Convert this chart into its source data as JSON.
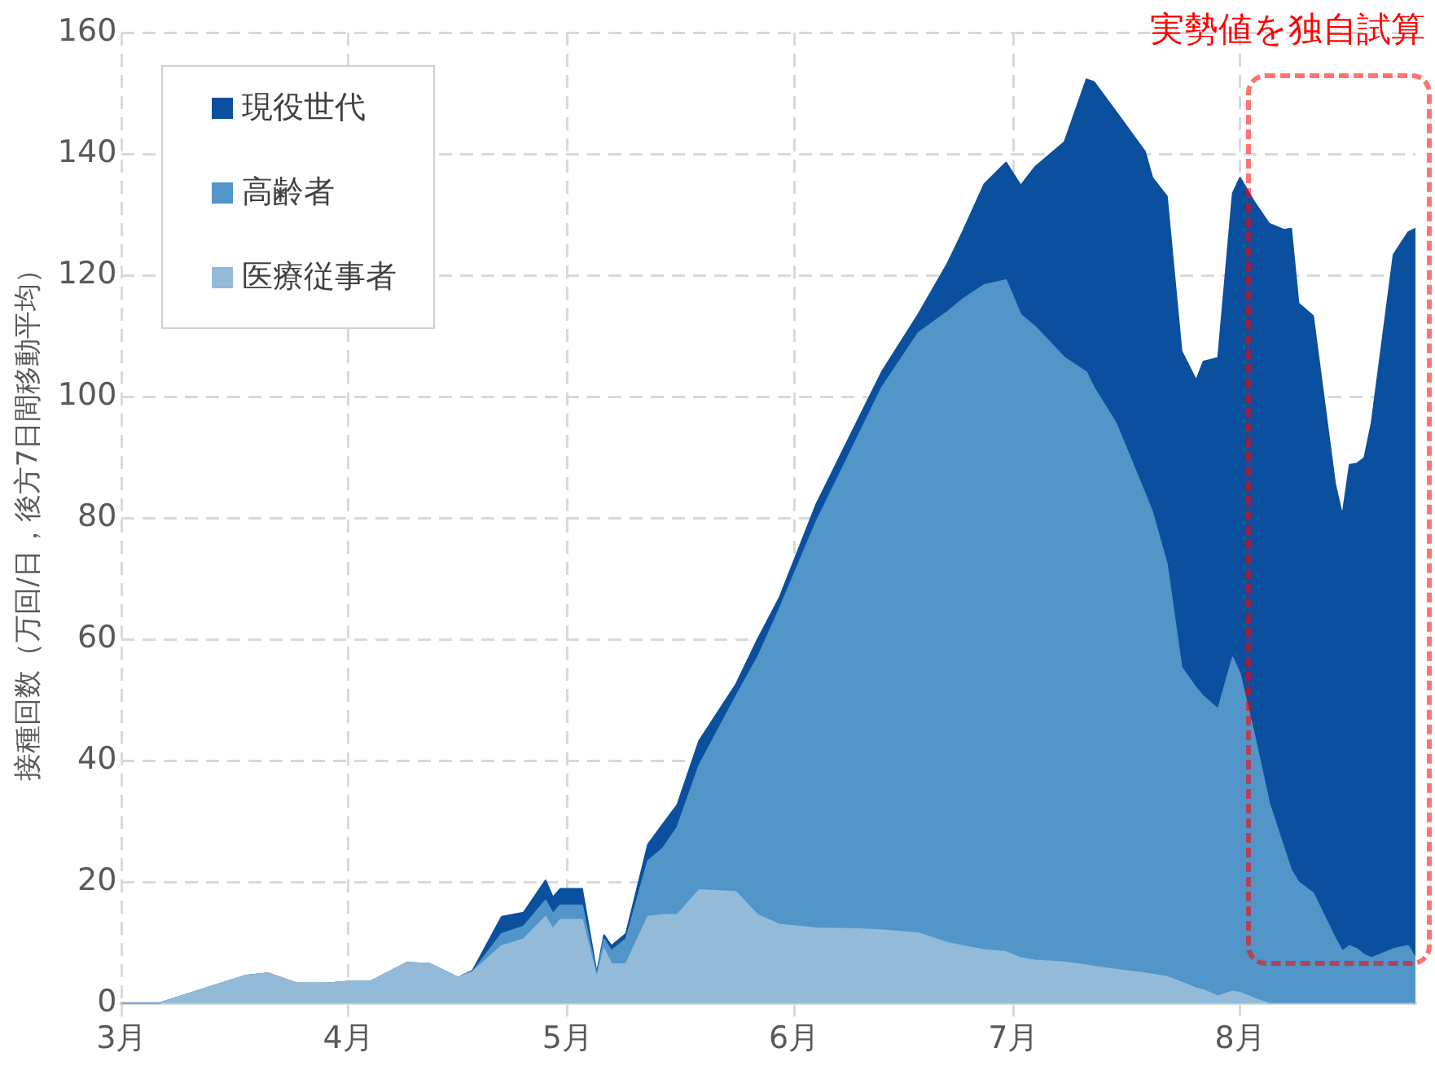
{
  "chart_data": {
    "type": "area",
    "stacked": true,
    "ylabel": "接種回数（万回/日，後方7日間移動平均）",
    "x": [
      "--03-01",
      "--03-06",
      "--03-12",
      "--03-18",
      "--03-21",
      "--03-25",
      "--03-29",
      "--04-01",
      "--04-04",
      "--04-09",
      "--04-12",
      "--04-16",
      "--04-18",
      "--04-22",
      "--04-25",
      "--04-28",
      "--04-29",
      "--04-30",
      "--05-03",
      "--05-05",
      "--05-06",
      "--05-07",
      "--05-09",
      "--05-12",
      "--05-14",
      "--05-16",
      "--05-19",
      "--05-24",
      "--05-27",
      "--05-30",
      "--06-04",
      "--06-09",
      "--06-13",
      "--06-18",
      "--06-22",
      "--06-24",
      "--06-27",
      "--06-30",
      "--07-02",
      "--07-04",
      "--07-08",
      "--07-11",
      "--07-12",
      "--07-15",
      "--07-19",
      "--07-20",
      "--07-22",
      "--07-24",
      "--07-26",
      "--07-27",
      "--07-29",
      "--07-31",
      "--08-01",
      "--08-03",
      "--08-05",
      "--08-07",
      "--08-08",
      "--08-09",
      "--08-11",
      "--08-14",
      "--08-15",
      "--08-16",
      "--08-17",
      "--08-18",
      "--08-19",
      "--08-22",
      "--08-24",
      "--08-25"
    ],
    "series": [
      {
        "name": "医療従事者",
        "color": "#93bbd9",
        "values": [
          0,
          0,
          2.3,
          4.6,
          5,
          3.3,
          3.3,
          3.6,
          3.6,
          6.7,
          6.6,
          4.3,
          5.2,
          9.5,
          10.6,
          14.3,
          12.3,
          13.8,
          13.8,
          4.1,
          9,
          6.5,
          6.5,
          14.3,
          14.6,
          14.6,
          18.7,
          18.4,
          14.6,
          13,
          12.4,
          12.3,
          12.1,
          11.6,
          10,
          9.5,
          8.8,
          8.5,
          7.5,
          7.1,
          6.8,
          6.3,
          6.1,
          5.6,
          5,
          4.8,
          4.4,
          3.5,
          2.5,
          2.2,
          1.2,
          2,
          1.8,
          0.8,
          0,
          0,
          0,
          0,
          0,
          0,
          0,
          0,
          0,
          0,
          0,
          0,
          0,
          0
        ]
      },
      {
        "name": "高齢者",
        "color": "#5195c9",
        "values": [
          0,
          0,
          0,
          0,
          0,
          0,
          0,
          0,
          0,
          0,
          0,
          0,
          0,
          2,
          2.1,
          2.7,
          2.5,
          2.4,
          2.4,
          0.5,
          1.6,
          2.2,
          4.1,
          9.2,
          10.9,
          14.4,
          20.5,
          32.1,
          42.4,
          52,
          66.9,
          79.3,
          89.4,
          98.9,
          104,
          106.5,
          109.6,
          110.7,
          106,
          104.4,
          99.6,
          97.7,
          95.4,
          90.1,
          79,
          76.2,
          68,
          51.9,
          49.5,
          48.4,
          47.3,
          55,
          52.5,
          43.2,
          33,
          25.6,
          22,
          20,
          18.2,
          10.8,
          8.6,
          9.5,
          9,
          8,
          7.5,
          9,
          9.5,
          7.5
        ]
      },
      {
        "name": "現役世代",
        "color": "#0b4f9f",
        "values": [
          0,
          0,
          0,
          0,
          0,
          0,
          0,
          0,
          0,
          0,
          0,
          0,
          0.2,
          2.8,
          2.3,
          3.3,
          2.7,
          2.7,
          2.7,
          0.4,
          0.7,
          0.8,
          0.9,
          2.7,
          4,
          3.7,
          4.1,
          2,
          3,
          1.9,
          2.9,
          2.8,
          2.6,
          3.1,
          8,
          11,
          16.6,
          19.4,
          21.3,
          26.4,
          35.6,
          48.3,
          50.4,
          51.3,
          56.4,
          55.1,
          60.6,
          52.1,
          50.7,
          55.2,
          57.9,
          76.5,
          81.8,
          88,
          95.5,
          101.9,
          105.7,
          95.4,
          95.1,
          74.9,
          71.8,
          79.3,
          80,
          81.9,
          88.2,
          114.4,
          117.6,
          120.2
        ]
      }
    ],
    "xlim": [
      "--03-01",
      "--08-25"
    ],
    "xticks": [
      {
        "value": "--03-01",
        "label": "3月"
      },
      {
        "value": "--04-01",
        "label": "4月"
      },
      {
        "value": "--05-01",
        "label": "5月"
      },
      {
        "value": "--06-01",
        "label": "6月"
      },
      {
        "value": "--07-01",
        "label": "7月"
      },
      {
        "value": "--08-01",
        "label": "8月"
      }
    ],
    "ylim": [
      0,
      160
    ],
    "yticks": [
      0,
      20,
      40,
      60,
      80,
      100,
      120,
      140,
      160
    ],
    "annotations": [
      "実勢値を独自試算"
    ],
    "grid": true,
    "legend": "top left",
    "marker": "none"
  }
}
